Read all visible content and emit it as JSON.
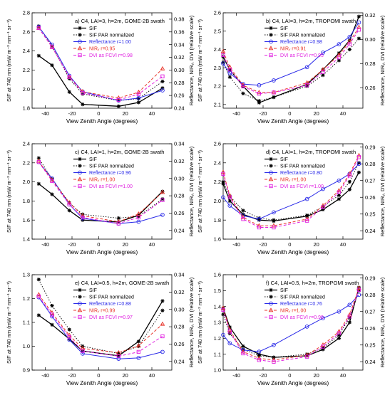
{
  "figure": {
    "left_ylabel": "SIF at 740 nm (mW m⁻² nm⁻¹ sr⁻¹)",
    "right_ylabel": "Reflectance, NIRᵥ, DVI (relative scale)",
    "xlabel": "View Zenith Angle (degrees)"
  },
  "colors": {
    "sif": "#000000",
    "sif_par": "#000000",
    "reflectance": "#2a2ae8",
    "nirv": "#e8352a",
    "dvi": "#e020e0"
  },
  "chart_data": [
    {
      "type": "line",
      "title": "a) C4, LAI=3, h=2m, GOME-2B swath",
      "xlim": [
        -50,
        55
      ],
      "xticks": [
        -40,
        -20,
        0,
        20,
        40
      ],
      "ylim": [
        1.8,
        2.8
      ],
      "yticks": [
        1.8,
        2.0,
        2.2,
        2.4,
        2.6,
        2.8
      ],
      "y2lim": [
        0.24,
        0.39
      ],
      "y2ticks": [
        0.24,
        0.26,
        0.28,
        0.3,
        0.32,
        0.34,
        0.36,
        0.38
      ],
      "legend": [
        "SIF",
        "SIF PAR normalized",
        "Reflectance r=1.00",
        "NIRᵥ r=0.95",
        "DVI as FCVI r=0.98"
      ],
      "series": [
        {
          "name": "SIF",
          "axis": "left",
          "x": [
            -45,
            -35,
            -22,
            -12,
            15,
            30,
            48
          ],
          "y": [
            2.35,
            2.25,
            1.97,
            1.84,
            1.82,
            1.86,
            2.01
          ]
        },
        {
          "name": "SIF PAR normalized",
          "axis": "left",
          "x": [
            -45,
            -35,
            -22,
            -12,
            15,
            30,
            48
          ],
          "y": [
            2.66,
            2.45,
            2.11,
            1.95,
            1.88,
            1.9,
            2.08
          ]
        },
        {
          "name": "Reflectance",
          "axis": "right",
          "x": [
            -45,
            -35,
            -22,
            -12,
            15,
            30,
            48
          ],
          "y": [
            0.368,
            0.34,
            0.291,
            0.266,
            0.252,
            0.256,
            0.268
          ]
        },
        {
          "name": "NIRᵥ",
          "axis": "right",
          "x": [
            -45,
            -35,
            -22,
            -12,
            15,
            30,
            48
          ],
          "y": [
            0.366,
            0.336,
            0.289,
            0.266,
            0.256,
            0.265,
            0.302
          ]
        },
        {
          "name": "DVI as FCVI",
          "axis": "right",
          "x": [
            -45,
            -35,
            -22,
            -12,
            15,
            30,
            48
          ],
          "y": [
            0.366,
            0.336,
            0.289,
            0.264,
            0.253,
            0.262,
            0.29
          ]
        }
      ]
    },
    {
      "type": "line",
      "title": "b) C4, LAI=3, h=2m, TROPOMI swath",
      "xlim": [
        -50,
        55
      ],
      "xticks": [
        -40,
        -20,
        0,
        20,
        40
      ],
      "ylim": [
        2.08,
        2.6
      ],
      "yticks": [
        2.1,
        2.2,
        2.3,
        2.4,
        2.5,
        2.6
      ],
      "y2lim": [
        0.243,
        0.322
      ],
      "y2ticks": [
        0.26,
        0.28,
        0.3,
        0.32
      ],
      "legend": [
        "SIF",
        "SIF PAR normalized",
        "Reflectance r=0.98",
        "NIRᵥ r=0.91",
        "DVI as FCVI r=0.95"
      ],
      "series": [
        {
          "name": "SIF",
          "axis": "left",
          "x": [
            -50,
            -45,
            -35,
            -23,
            -12,
            13,
            25,
            37,
            45,
            52
          ],
          "y": [
            2.36,
            2.29,
            2.2,
            2.11,
            2.14,
            2.21,
            2.29,
            2.38,
            2.45,
            2.58
          ]
        },
        {
          "name": "SIF PAR normalized",
          "axis": "left",
          "x": [
            -50,
            -45,
            -35,
            -23,
            -12,
            13,
            25,
            37,
            45,
            52
          ],
          "y": [
            2.33,
            2.25,
            2.16,
            2.12,
            2.14,
            2.2,
            2.26,
            2.34,
            2.4,
            2.46
          ]
        },
        {
          "name": "Reflectance",
          "axis": "right",
          "x": [
            -50,
            -45,
            -35,
            -23,
            -12,
            13,
            25,
            37,
            45,
            52
          ],
          "y": [
            0.28,
            0.272,
            0.263,
            0.262,
            0.266,
            0.277,
            0.289,
            0.296,
            0.302,
            0.314
          ]
        },
        {
          "name": "NIRᵥ",
          "axis": "right",
          "x": [
            -50,
            -45,
            -35,
            -23,
            -12,
            13,
            25,
            37,
            45,
            52
          ],
          "y": [
            0.29,
            0.277,
            0.262,
            0.256,
            0.256,
            0.264,
            0.275,
            0.287,
            0.298,
            0.31
          ]
        },
        {
          "name": "DVI as FCVI",
          "axis": "right",
          "x": [
            -50,
            -45,
            -35,
            -23,
            -12,
            13,
            25,
            37,
            45,
            52
          ],
          "y": [
            0.287,
            0.275,
            0.261,
            0.255,
            0.256,
            0.262,
            0.273,
            0.285,
            0.296,
            0.308
          ]
        }
      ]
    },
    {
      "type": "line",
      "title": "c) C4, LAI=1, h=2m, GOME-2B swath",
      "xlim": [
        -50,
        55
      ],
      "xticks": [
        -40,
        -20,
        0,
        20,
        40
      ],
      "ylim": [
        1.4,
        2.4
      ],
      "yticks": [
        1.4,
        1.6,
        1.8,
        2.0,
        2.2,
        2.4
      ],
      "y2lim": [
        0.23,
        0.34
      ],
      "y2ticks": [
        0.24,
        0.26,
        0.28,
        0.3,
        0.32,
        0.34
      ],
      "legend": [
        "SIF",
        "SIF PAR normalized",
        "Reflectance r=0.96",
        "NIRᵥ r=1.00",
        "DVI as FCVI r=1.00"
      ],
      "series": [
        {
          "name": "SIF",
          "axis": "left",
          "x": [
            -45,
            -35,
            -22,
            -12,
            15,
            30,
            48
          ],
          "y": [
            1.98,
            1.87,
            1.7,
            1.6,
            1.58,
            1.65,
            1.9
          ]
        },
        {
          "name": "SIF PAR normalized",
          "axis": "left",
          "x": [
            -45,
            -35,
            -22,
            -12,
            15,
            30,
            48
          ],
          "y": [
            2.25,
            2.03,
            1.78,
            1.66,
            1.62,
            1.64,
            1.82
          ]
        },
        {
          "name": "Reflectance",
          "axis": "right",
          "x": [
            -45,
            -35,
            -22,
            -12,
            15,
            30,
            48
          ],
          "y": [
            0.319,
            0.3,
            0.27,
            0.254,
            0.248,
            0.25,
            0.258
          ]
        },
        {
          "name": "NIRᵥ",
          "axis": "right",
          "x": [
            -45,
            -35,
            -22,
            -12,
            15,
            30,
            48
          ],
          "y": [
            0.32,
            0.298,
            0.272,
            0.257,
            0.25,
            0.259,
            0.284
          ]
        },
        {
          "name": "DVI as FCVI",
          "axis": "right",
          "x": [
            -45,
            -35,
            -22,
            -12,
            15,
            30,
            48
          ],
          "y": [
            0.319,
            0.297,
            0.27,
            0.255,
            0.248,
            0.255,
            0.275
          ]
        }
      ]
    },
    {
      "type": "line",
      "title": "d) C4, LAI=1, h=2m, TROPOMI swath",
      "xlim": [
        -50,
        55
      ],
      "xticks": [
        -40,
        -20,
        0,
        20,
        40
      ],
      "ylim": [
        1.6,
        2.6
      ],
      "yticks": [
        1.6,
        1.8,
        2.0,
        2.2,
        2.4,
        2.6
      ],
      "y2lim": [
        0.235,
        0.292
      ],
      "y2ticks": [
        0.24,
        0.25,
        0.26,
        0.27,
        0.28,
        0.29
      ],
      "legend": [
        "SIF",
        "SIF PAR normalized",
        "Reflectance r=0.80",
        "NIRᵥ r=1.00",
        "DVI as FCVI r=1.00"
      ],
      "series": [
        {
          "name": "SIF",
          "axis": "left",
          "x": [
            -50,
            -45,
            -35,
            -23,
            -12,
            13,
            25,
            37,
            45,
            52
          ],
          "y": [
            2.18,
            2.0,
            1.86,
            1.8,
            1.79,
            1.84,
            1.91,
            2.02,
            2.12,
            2.3
          ]
        },
        {
          "name": "SIF PAR normalized",
          "axis": "left",
          "x": [
            -50,
            -45,
            -35,
            -23,
            -12,
            13,
            25,
            37,
            45,
            52
          ],
          "y": [
            2.2,
            2.05,
            1.9,
            1.82,
            1.8,
            1.85,
            1.94,
            2.06,
            2.2,
            2.4
          ]
        },
        {
          "name": "Reflectance",
          "axis": "right",
          "x": [
            -50,
            -45,
            -35,
            -23,
            -12,
            13,
            25,
            37,
            45,
            52
          ],
          "y": [
            0.26,
            0.255,
            0.249,
            0.247,
            0.251,
            0.259,
            0.265,
            0.27,
            0.274,
            0.28
          ]
        },
        {
          "name": "NIRᵥ",
          "axis": "right",
          "x": [
            -50,
            -45,
            -35,
            -23,
            -12,
            13,
            25,
            37,
            45,
            52
          ],
          "y": [
            0.275,
            0.261,
            0.248,
            0.243,
            0.243,
            0.247,
            0.255,
            0.264,
            0.274,
            0.285
          ]
        },
        {
          "name": "DVI as FCVI",
          "axis": "right",
          "x": [
            -50,
            -45,
            -35,
            -23,
            -12,
            13,
            25,
            37,
            45,
            52
          ],
          "y": [
            0.274,
            0.26,
            0.247,
            0.242,
            0.242,
            0.246,
            0.254,
            0.263,
            0.273,
            0.284
          ]
        }
      ]
    },
    {
      "type": "line",
      "title": "e) C4, LAI=0.5, h=2m, GOME-2B swath",
      "xlim": [
        -50,
        55
      ],
      "xticks": [
        -40,
        -20,
        0,
        20,
        40
      ],
      "ylim": [
        0.9,
        1.3
      ],
      "yticks": [
        0.9,
        1.0,
        1.1,
        1.2,
        1.3
      ],
      "y2lim": [
        0.23,
        0.34
      ],
      "y2ticks": [
        0.24,
        0.26,
        0.28,
        0.3,
        0.32,
        0.34
      ],
      "legend": [
        "SIF",
        "SIF PAR normalized",
        "Reflectance r=0.88",
        "NIRᵥ r=0.99",
        "DVI as FCVI r=0.97"
      ],
      "series": [
        {
          "name": "SIF",
          "axis": "left",
          "x": [
            -45,
            -35,
            -22,
            -12,
            15,
            30,
            48
          ],
          "y": [
            1.13,
            1.09,
            1.03,
            0.98,
            0.96,
            1.02,
            1.19
          ]
        },
        {
          "name": "SIF PAR normalized",
          "axis": "left",
          "x": [
            -45,
            -35,
            -22,
            -12,
            15,
            30,
            48
          ],
          "y": [
            1.28,
            1.17,
            1.07,
            1.0,
            0.97,
            1.0,
            1.15
          ]
        },
        {
          "name": "Reflectance",
          "axis": "right",
          "x": [
            -45,
            -35,
            -22,
            -12,
            15,
            30,
            48
          ],
          "y": [
            0.314,
            0.292,
            0.265,
            0.249,
            0.243,
            0.244,
            0.251
          ]
        },
        {
          "name": "NIRᵥ",
          "axis": "right",
          "x": [
            -45,
            -35,
            -22,
            -12,
            15,
            30,
            48
          ],
          "y": [
            0.317,
            0.296,
            0.27,
            0.255,
            0.25,
            0.258,
            0.283
          ]
        },
        {
          "name": "DVI as FCVI",
          "axis": "right",
          "x": [
            -45,
            -35,
            -22,
            -12,
            15,
            30,
            48
          ],
          "y": [
            0.315,
            0.294,
            0.268,
            0.252,
            0.246,
            0.251,
            0.269
          ]
        }
      ]
    },
    {
      "type": "line",
      "title": "f) C4, LAI=0.5, h=2m, TROPOMI swath",
      "xlim": [
        -50,
        55
      ],
      "xticks": [
        -40,
        -20,
        0,
        20,
        40
      ],
      "ylim": [
        1.0,
        1.6
      ],
      "yticks": [
        1.0,
        1.1,
        1.2,
        1.3,
        1.4,
        1.5,
        1.6
      ],
      "y2lim": [
        0.235,
        0.292
      ],
      "y2ticks": [
        0.24,
        0.25,
        0.26,
        0.27,
        0.28,
        0.29
      ],
      "legend": [
        "SIF",
        "SIF PAR normalized",
        "Reflectance r=0.76",
        "NIRᵥ r=1.00",
        "DVI as FCVI r=0.99"
      ],
      "series": [
        {
          "name": "SIF",
          "axis": "left",
          "x": [
            -50,
            -45,
            -35,
            -23,
            -12,
            13,
            25,
            37,
            45,
            52
          ],
          "y": [
            1.39,
            1.27,
            1.15,
            1.1,
            1.08,
            1.09,
            1.13,
            1.2,
            1.3,
            1.52
          ]
        },
        {
          "name": "SIF PAR normalized",
          "axis": "left",
          "x": [
            -50,
            -45,
            -35,
            -23,
            -12,
            13,
            25,
            37,
            45,
            52
          ],
          "y": [
            1.35,
            1.23,
            1.13,
            1.09,
            1.08,
            1.1,
            1.14,
            1.22,
            1.33,
            1.5
          ]
        },
        {
          "name": "Reflectance",
          "axis": "right",
          "x": [
            -50,
            -45,
            -35,
            -23,
            -12,
            13,
            25,
            37,
            45,
            52
          ],
          "y": [
            0.256,
            0.251,
            0.247,
            0.246,
            0.25,
            0.261,
            0.266,
            0.27,
            0.274,
            0.28
          ]
        },
        {
          "name": "NIRᵥ",
          "axis": "right",
          "x": [
            -50,
            -45,
            -35,
            -23,
            -12,
            13,
            25,
            37,
            45,
            52
          ],
          "y": [
            0.272,
            0.259,
            0.246,
            0.242,
            0.241,
            0.244,
            0.25,
            0.258,
            0.268,
            0.284
          ]
        },
        {
          "name": "DVI as FCVI",
          "axis": "right",
          "x": [
            -50,
            -45,
            -35,
            -23,
            -12,
            13,
            25,
            37,
            45,
            52
          ],
          "y": [
            0.271,
            0.258,
            0.245,
            0.241,
            0.24,
            0.243,
            0.249,
            0.257,
            0.267,
            0.283
          ]
        }
      ]
    }
  ]
}
